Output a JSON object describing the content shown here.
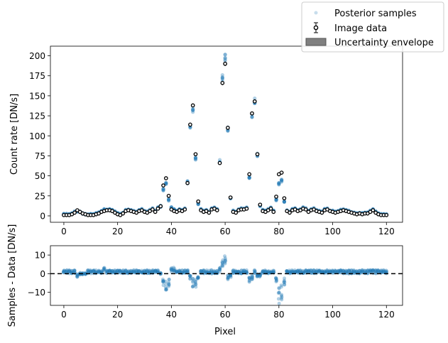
{
  "chart_data": [
    {
      "type": "scatter",
      "panel": "top",
      "xlabel": "",
      "ylabel": "Count rate [DN/s]",
      "xlim": [
        -5,
        126
      ],
      "ylim": [
        -8,
        212
      ],
      "xticks": [
        0,
        20,
        40,
        60,
        80,
        100,
        120
      ],
      "yticks": [
        0,
        25,
        50,
        75,
        100,
        125,
        150,
        175,
        200
      ],
      "grid": false,
      "legend": {
        "placement": "top-right (outside axes)",
        "entries": [
          {
            "label": "Posterior samples",
            "marker": "point",
            "color": "#1f77b4"
          },
          {
            "label": "Image data",
            "marker": "errorbar-circle",
            "color": "#000000"
          },
          {
            "label": "Uncertainty envelope",
            "marker": "patch",
            "color": "#808080"
          }
        ]
      },
      "series": [
        {
          "name": "Image data",
          "x": [
            0,
            1,
            2,
            3,
            4,
            5,
            6,
            7,
            8,
            9,
            10,
            11,
            12,
            13,
            14,
            15,
            16,
            17,
            18,
            19,
            20,
            21,
            22,
            23,
            24,
            25,
            26,
            27,
            28,
            29,
            30,
            31,
            32,
            33,
            34,
            35,
            36,
            37,
            38,
            39,
            40,
            41,
            42,
            43,
            44,
            45,
            46,
            47,
            48,
            49,
            50,
            51,
            52,
            53,
            54,
            55,
            56,
            57,
            58,
            59,
            60,
            61,
            62,
            63,
            64,
            65,
            66,
            67,
            68,
            69,
            70,
            71,
            72,
            73,
            74,
            75,
            76,
            77,
            78,
            79,
            80,
            81,
            82,
            83,
            84,
            85,
            86,
            87,
            88,
            89,
            90,
            91,
            92,
            93,
            94,
            95,
            96,
            97,
            98,
            99,
            100,
            101,
            102,
            103,
            104,
            105,
            106,
            107,
            108,
            109,
            110,
            111,
            112,
            113,
            114,
            115,
            116,
            117,
            118,
            119,
            120
          ],
          "values": [
            1,
            1,
            1,
            2,
            4,
            7,
            5,
            3,
            2,
            1,
            1,
            1,
            2,
            3,
            5,
            6,
            7,
            7,
            6,
            4,
            2,
            1,
            3,
            6,
            7,
            6,
            5,
            4,
            6,
            7,
            5,
            4,
            6,
            8,
            5,
            9,
            12,
            38,
            47,
            25,
            8,
            6,
            5,
            7,
            6,
            8,
            41,
            114,
            138,
            77,
            18,
            7,
            5,
            6,
            4,
            8,
            9,
            7,
            66,
            166,
            190,
            110,
            23,
            5,
            4,
            7,
            8,
            8,
            9,
            52,
            128,
            143,
            77,
            14,
            6,
            5,
            7,
            9,
            5,
            24,
            52,
            54,
            22,
            6,
            4,
            7,
            8,
            6,
            7,
            9,
            8,
            5,
            7,
            8,
            6,
            5,
            4,
            7,
            8,
            6,
            5,
            4,
            5,
            6,
            7,
            6,
            5,
            4,
            3,
            2,
            3,
            2,
            3,
            3,
            5,
            7,
            4,
            2,
            1,
            1,
            1
          ],
          "marker": "open-circle-with-errorbar",
          "color": "#000000"
        },
        {
          "name": "Posterior samples",
          "x": [
            0,
            1,
            2,
            3,
            4,
            5,
            6,
            7,
            8,
            9,
            10,
            11,
            12,
            13,
            14,
            15,
            16,
            17,
            18,
            19,
            20,
            21,
            22,
            23,
            24,
            25,
            26,
            27,
            28,
            29,
            30,
            31,
            32,
            33,
            34,
            35,
            36,
            37,
            38,
            39,
            40,
            41,
            42,
            43,
            44,
            45,
            46,
            47,
            48,
            49,
            50,
            51,
            52,
            53,
            54,
            55,
            56,
            57,
            58,
            59,
            60,
            61,
            62,
            63,
            64,
            65,
            66,
            67,
            68,
            69,
            70,
            71,
            72,
            73,
            74,
            75,
            76,
            77,
            78,
            79,
            80,
            81,
            82,
            83,
            84,
            85,
            86,
            87,
            88,
            89,
            90,
            91,
            92,
            93,
            94,
            95,
            96,
            97,
            98,
            99,
            100,
            101,
            102,
            103,
            104,
            105,
            106,
            107,
            108,
            109,
            110,
            111,
            112,
            113,
            114,
            115,
            116,
            117,
            118,
            119,
            120
          ],
          "values": [
            2,
            2,
            2,
            3,
            5,
            6,
            5,
            3,
            2,
            2,
            2,
            2,
            3,
            4,
            6,
            8,
            8,
            8,
            7,
            5,
            3,
            2,
            4,
            7,
            8,
            7,
            6,
            5,
            7,
            8,
            6,
            5,
            7,
            9,
            6,
            10,
            12,
            33,
            40,
            20,
            10,
            8,
            6,
            8,
            7,
            9,
            42,
            112,
            133,
            72,
            15,
            8,
            6,
            7,
            5,
            9,
            10,
            8,
            68,
            172,
            198,
            108,
            22,
            6,
            5,
            8,
            9,
            9,
            10,
            48,
            126,
            144,
            76,
            13,
            7,
            6,
            8,
            10,
            6,
            20,
            40,
            44,
            18,
            7,
            5,
            8,
            9,
            7,
            8,
            10,
            9,
            6,
            8,
            9,
            7,
            6,
            5,
            8,
            9,
            7,
            6,
            5,
            6,
            7,
            8,
            7,
            6,
            5,
            4,
            3,
            4,
            3,
            4,
            4,
            6,
            8,
            5,
            3,
            2,
            2,
            2
          ],
          "marker": "point-cloud",
          "color": "#1f77b4"
        }
      ]
    },
    {
      "type": "scatter",
      "panel": "bottom",
      "xlabel": "Pixel",
      "ylabel": "Samples - Data [DN/s]",
      "xlim": [
        -5,
        126
      ],
      "ylim": [
        -17,
        15
      ],
      "xticks": [
        0,
        20,
        40,
        60,
        80,
        100,
        120
      ],
      "yticks": [
        -10,
        0,
        10
      ],
      "reference_line": {
        "y": 0,
        "style": "dashed",
        "color": "#000000"
      },
      "series": [
        {
          "name": "Posterior samples",
          "x": [
            0,
            1,
            2,
            3,
            4,
            5,
            6,
            7,
            8,
            9,
            10,
            11,
            12,
            13,
            14,
            15,
            16,
            17,
            18,
            19,
            20,
            21,
            22,
            23,
            24,
            25,
            26,
            27,
            28,
            29,
            30,
            31,
            32,
            33,
            34,
            35,
            36,
            37,
            38,
            39,
            40,
            41,
            42,
            43,
            44,
            45,
            46,
            47,
            48,
            49,
            50,
            51,
            52,
            53,
            54,
            55,
            56,
            57,
            58,
            59,
            60,
            61,
            62,
            63,
            64,
            65,
            66,
            67,
            68,
            69,
            70,
            71,
            72,
            73,
            74,
            75,
            76,
            77,
            78,
            79,
            80,
            81,
            82,
            83,
            84,
            85,
            86,
            87,
            88,
            89,
            90,
            91,
            92,
            93,
            94,
            95,
            96,
            97,
            98,
            99,
            100,
            101,
            102,
            103,
            104,
            105,
            106,
            107,
            108,
            109,
            110,
            111,
            112,
            113,
            114,
            115,
            116,
            117,
            118,
            119,
            120
          ],
          "values": [
            1,
            1,
            1,
            1,
            1,
            -1,
            0,
            0,
            0,
            1,
            1,
            1,
            1,
            1,
            1,
            2,
            1,
            1,
            1,
            1,
            1,
            1,
            1,
            1,
            1,
            1,
            1,
            1,
            1,
            1,
            1,
            1,
            1,
            1,
            1,
            1,
            0,
            -5,
            -7,
            -5,
            2,
            2,
            1,
            1,
            1,
            1,
            1,
            -2,
            -5,
            -5,
            -3,
            1,
            1,
            1,
            1,
            1,
            1,
            1,
            2,
            6,
            8,
            -2,
            -1,
            1,
            1,
            1,
            1,
            1,
            1,
            -4,
            -2,
            1,
            -1,
            -1,
            1,
            1,
            1,
            1,
            1,
            -4,
            -12,
            -10,
            -4,
            1,
            1,
            1,
            1,
            1,
            1,
            1,
            1,
            1,
            1,
            1,
            1,
            1,
            1,
            1,
            1,
            1,
            1,
            1,
            1,
            1,
            1,
            1,
            1,
            1,
            1,
            1,
            1,
            1,
            1,
            1,
            1,
            1,
            1,
            1,
            1,
            1,
            1
          ],
          "marker": "point-cloud",
          "color": "#1f77b4"
        }
      ]
    }
  ]
}
